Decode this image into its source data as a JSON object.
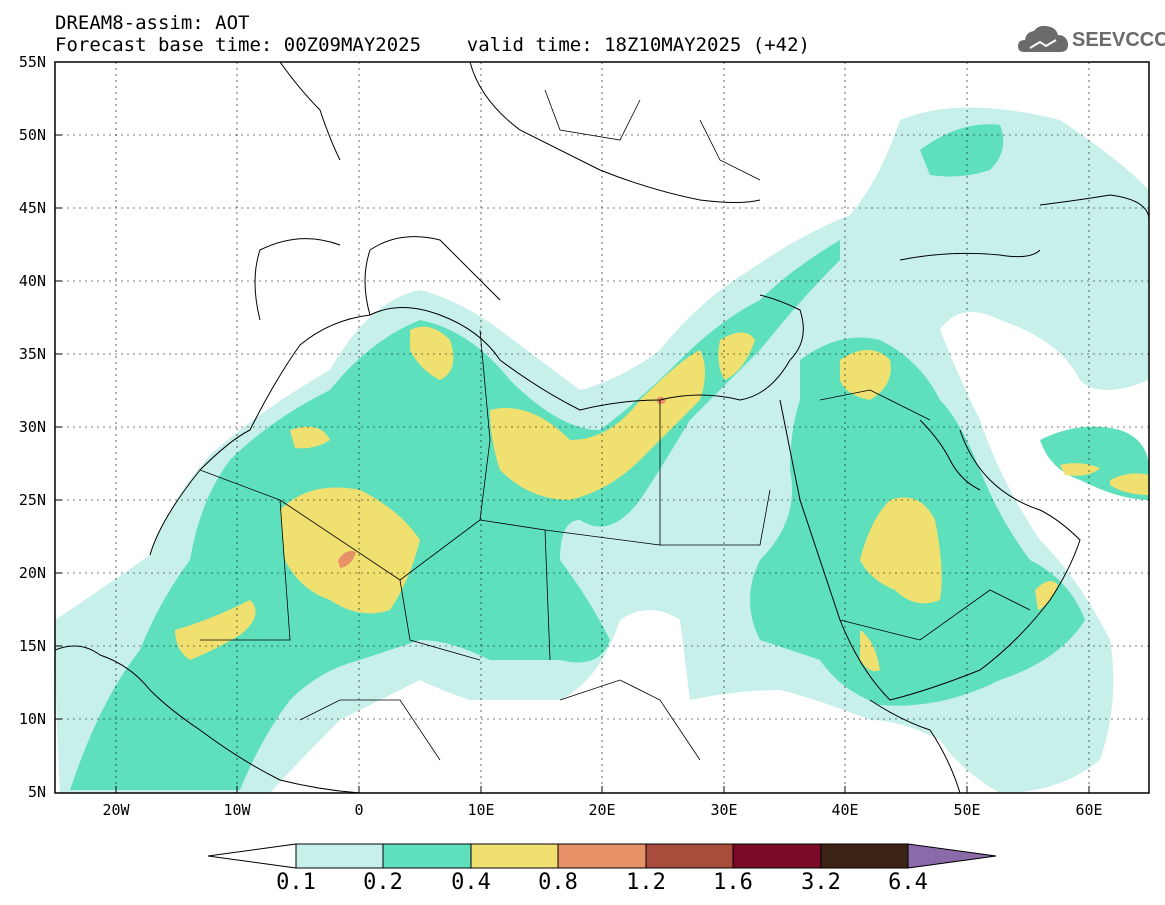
{
  "title": {
    "line1": "DREAM8-assim: AOT",
    "line2": "Forecast base time: 00Z09MAY2025    valid time: 18Z10MAY2025 (+42)"
  },
  "logo": {
    "text": "SEEVCCC",
    "icon": "cloud-icon",
    "color": "#6b6b6b"
  },
  "map": {
    "variable": "AOT",
    "lat_range": [
      5,
      55
    ],
    "lon_range": [
      -25,
      65
    ],
    "lat_labels": [
      "55N",
      "50N",
      "45N",
      "40N",
      "35N",
      "30N",
      "25N",
      "20N",
      "15N",
      "10N",
      "5N"
    ],
    "lon_labels": [
      "20W",
      "10W",
      "0",
      "10E",
      "20E",
      "30E",
      "40E",
      "50E",
      "60E"
    ],
    "grid": true
  },
  "colorbar": {
    "labels": [
      "0.1",
      "0.2",
      "0.4",
      "0.8",
      "1.2",
      "1.6",
      "3.2",
      "6.4"
    ],
    "colors": [
      "#ffffff",
      "#c8f0ea",
      "#5fe0bc",
      "#f0e070",
      "#e89068",
      "#a84c3c",
      "#7a0a28",
      "#3c2414",
      "#8a6aa8"
    ]
  }
}
